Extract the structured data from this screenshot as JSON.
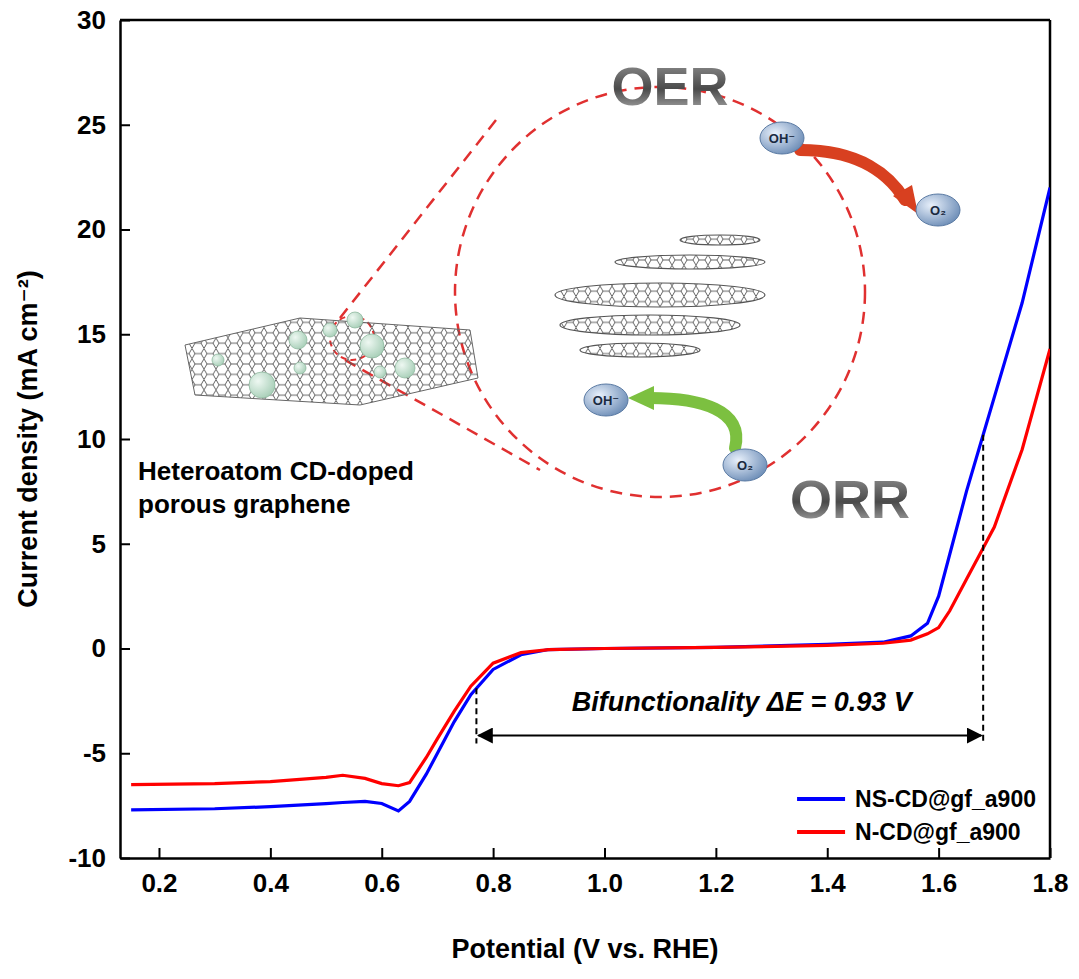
{
  "chart_data": {
    "type": "line",
    "x_label": "Potential (V vs. RHE)",
    "y_label": "Current density (mA cm⁻²)",
    "x": [
      0.15,
      0.3,
      0.4,
      0.5,
      0.53,
      0.57,
      0.6,
      0.63,
      0.65,
      0.68,
      0.7,
      0.73,
      0.76,
      0.8,
      0.85,
      0.9,
      1.0,
      1.2,
      1.4,
      1.5,
      1.55,
      1.58,
      1.6,
      1.62,
      1.65,
      1.68,
      1.7,
      1.75,
      1.8
    ],
    "series": [
      {
        "name": "NS-CD@gf_a900",
        "color": "#0000ff",
        "values": [
          -7.7,
          -7.65,
          -7.55,
          -7.4,
          -7.35,
          -7.3,
          -7.4,
          -7.75,
          -7.3,
          -6.0,
          -5.0,
          -3.5,
          -2.2,
          -1.0,
          -0.3,
          -0.05,
          0,
          0.05,
          0.2,
          0.3,
          0.6,
          1.2,
          2.5,
          4.5,
          7.5,
          10.2,
          12,
          16.5,
          22
        ]
      },
      {
        "name": "N-CD@gf_a900",
        "color": "#ff0000",
        "values": [
          -6.5,
          -6.45,
          -6.35,
          -6.15,
          -6.05,
          -6.2,
          -6.45,
          -6.55,
          -6.4,
          -5.2,
          -4.3,
          -3.0,
          -1.8,
          -0.7,
          -0.2,
          -0.05,
          0,
          0.05,
          0.15,
          0.25,
          0.4,
          0.7,
          1.0,
          1.8,
          3.3,
          4.8,
          5.8,
          9.5,
          14.3
        ]
      }
    ],
    "xlim": [
      0.13,
      1.8
    ],
    "ylim": [
      -10,
      30
    ],
    "xticks": [
      0.2,
      0.4,
      0.6,
      0.8,
      {
        "value": 1,
        "label": "1.0"
      },
      1.2,
      1.4,
      1.6,
      1.8
    ],
    "yticks": [
      -10,
      -5,
      0,
      5,
      10,
      15,
      20,
      25,
      30
    ],
    "legend": "lower right",
    "grid": false,
    "annotations": {
      "delta_e": {
        "text": "Bifunctionality ΔE = 0.93 V",
        "x_start": 0.77,
        "x_end": 1.68
      },
      "inset_label": "Heteroatom CD-doped porous graphene",
      "oer": "OER",
      "orr": "ORR",
      "species": [
        "OH⁻",
        "O₂",
        "OH⁻",
        "O₂"
      ]
    }
  }
}
